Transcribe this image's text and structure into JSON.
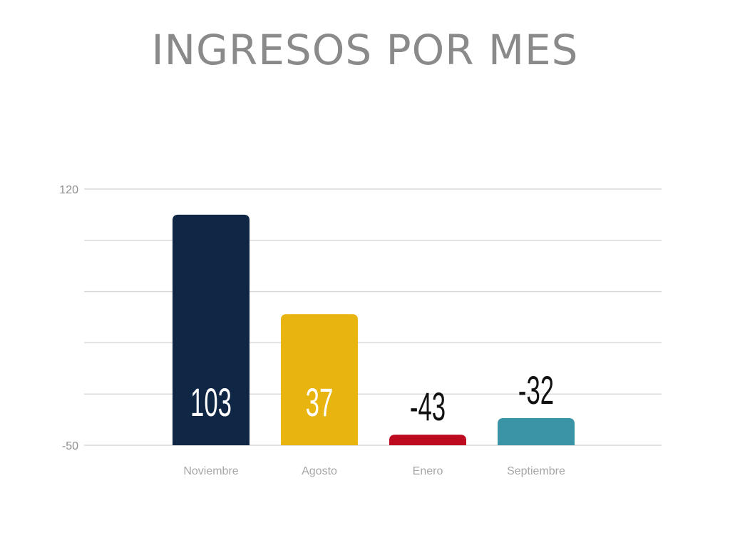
{
  "chart_data": {
    "type": "bar",
    "title": "INGRESOS POR MES",
    "categories": [
      "Noviembre",
      "Agosto",
      "Enero",
      "Septiembre"
    ],
    "values": [
      103,
      37,
      -43,
      -32
    ],
    "colors": [
      "#0f2645",
      "#e8b40f",
      "#be0a1e",
      "#3b93a6"
    ],
    "label_colors": [
      "#ffffff",
      "#ffffff",
      "#111111",
      "#111111"
    ],
    "ylim": [
      -50,
      120
    ],
    "yticks": [
      "120",
      "-50"
    ],
    "grid": true
  }
}
